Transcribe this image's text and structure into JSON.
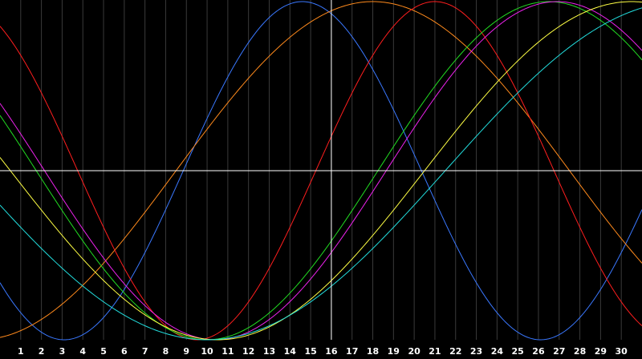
{
  "chart_data": {
    "type": "line",
    "title": "",
    "xlabel": "",
    "ylabel": "",
    "xlim": [
      0,
      31
    ],
    "ylim": [
      -1,
      1
    ],
    "grid": true,
    "x_ticks": [
      "1",
      "2",
      "3",
      "4",
      "5",
      "6",
      "7",
      "8",
      "9",
      "10",
      "11",
      "12",
      "13",
      "14",
      "15",
      "16",
      "17",
      "18",
      "19",
      "20",
      "21",
      "22",
      "23",
      "24",
      "25",
      "26",
      "27",
      "28",
      "29",
      "30"
    ],
    "crosshair": {
      "x": 16,
      "y": 0
    },
    "colors": {
      "background": "#000000",
      "grid": "#3a3a3a",
      "crosshair": "#ffffff",
      "tick_labels": "#ffffff"
    },
    "series": [
      {
        "color": "#3a78ff",
        "period": 23,
        "peak_day": 14.6
      },
      {
        "color": "#ff8a1c",
        "period": 38,
        "peak_day": 18.0
      },
      {
        "color": "#ff1e1e",
        "period": 23,
        "peak_day": 21.0
      },
      {
        "color": "#22dd22",
        "period": 33,
        "peak_day": 26.5
      },
      {
        "color": "#ee22ee",
        "period": 33,
        "peak_day": 26.9
      },
      {
        "color": "#ffff44",
        "period": 40,
        "peak_day": 30.5
      },
      {
        "color": "#22dddd",
        "period": 46,
        "peak_day": 33.0
      }
    ]
  }
}
